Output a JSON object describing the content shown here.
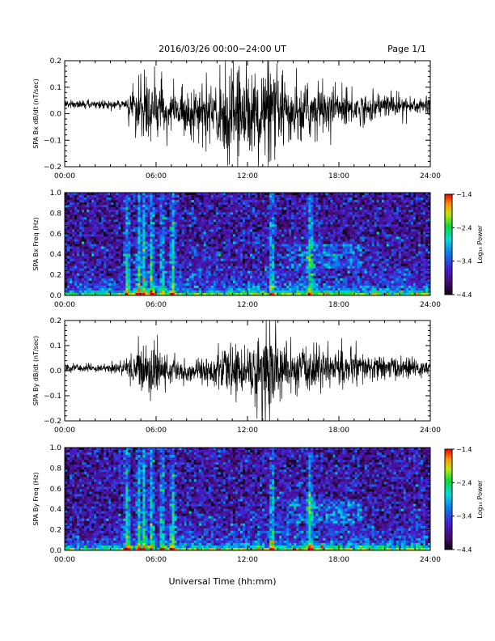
{
  "header": {
    "title": "2016/03/26  00:00−24:00 UT",
    "page": "Page 1/1"
  },
  "footer": {
    "xlabel": "Universal Time (hh:mm)"
  },
  "chart_data": [
    {
      "type": "line",
      "ylabel": "SPA Bx dB/dt (nT/sec)",
      "xlim": [
        0,
        24
      ],
      "ylim": [
        -0.2,
        0.2
      ],
      "xticks": [
        "00:00",
        "06:00",
        "12:00",
        "18:00",
        "24:00"
      ],
      "yticks": [
        "−0.2",
        "−0.1",
        "0.0",
        "0.1",
        "0.2"
      ],
      "envelope": {
        "x": [
          0,
          2,
          4,
          4.2,
          5,
          6,
          7,
          8,
          9,
          10,
          10.5,
          11,
          12,
          13,
          13.5,
          14,
          15,
          16,
          17,
          18,
          19,
          20,
          21,
          22,
          23,
          24
        ],
        "amplitude": [
          0.018,
          0.016,
          0.02,
          0.07,
          0.12,
          0.11,
          0.08,
          0.09,
          0.11,
          0.14,
          0.19,
          0.2,
          0.16,
          0.2,
          0.2,
          0.14,
          0.11,
          0.12,
          0.1,
          0.09,
          0.07,
          0.06,
          0.05,
          0.05,
          0.04,
          0.04
        ],
        "offset": [
          0.035,
          0.035,
          0.035,
          0.03,
          0.02,
          0.01,
          0.01,
          0.01,
          0.0,
          0.0,
          0.0,
          0.0,
          0.0,
          0.0,
          0.0,
          0.0,
          0.0,
          0.01,
          0.02,
          0.02,
          0.02,
          0.02,
          0.03,
          0.03,
          0.03,
          0.03
        ]
      }
    },
    {
      "type": "heatmap",
      "ylabel": "SPA Bx Freq (Hz)",
      "xlim": [
        0,
        24
      ],
      "ylim": [
        0,
        1.0
      ],
      "xticks": [
        "00:00",
        "06:00",
        "12:00",
        "18:00",
        "24:00"
      ],
      "yticks": [
        "0.0",
        "0.2",
        "0.4",
        "0.6",
        "0.8",
        "1.0"
      ],
      "colorbar_label": "Log₁₀ Power",
      "colorbar_ticks": [
        "−1.4",
        "−2.4",
        "−3.4",
        "−4.4"
      ],
      "color_range": [
        -4.4,
        -1.4
      ],
      "vertical_bursts_hours": [
        4.1,
        4.9,
        5.2,
        5.7,
        6.4,
        7.1,
        13.6,
        16.1
      ],
      "patch_region": {
        "x": [
          14.5,
          19.5
        ],
        "y": [
          0.25,
          0.5
        ]
      }
    },
    {
      "type": "line",
      "ylabel": "SPA By dB/dt (nT/sec)",
      "xlim": [
        0,
        24
      ],
      "ylim": [
        -0.2,
        0.2
      ],
      "xticks": [
        "00:00",
        "06:00",
        "12:00",
        "18:00",
        "24:00"
      ],
      "yticks": [
        "−0.2",
        "−0.1",
        "0.0",
        "0.1",
        "0.2"
      ],
      "envelope": {
        "x": [
          0,
          2,
          4,
          4.2,
          5,
          6,
          7,
          8,
          9,
          10,
          11,
          12,
          12.5,
          13,
          13.5,
          14,
          15,
          16,
          17,
          18,
          19,
          20,
          21,
          22,
          23,
          24
        ],
        "amplitude": [
          0.02,
          0.018,
          0.025,
          0.07,
          0.1,
          0.1,
          0.05,
          0.05,
          0.06,
          0.08,
          0.1,
          0.1,
          0.14,
          0.2,
          0.2,
          0.14,
          0.1,
          0.1,
          0.09,
          0.08,
          0.07,
          0.06,
          0.05,
          0.05,
          0.04,
          0.04
        ],
        "offset": [
          0.01,
          0.01,
          0.01,
          0.01,
          0.01,
          0.0,
          0.0,
          0.0,
          0.0,
          0.0,
          0.0,
          0.0,
          0.0,
          0.0,
          0.0,
          0.0,
          0.0,
          0.01,
          0.01,
          0.01,
          0.01,
          0.01,
          0.01,
          0.01,
          0.01,
          0.01
        ]
      }
    },
    {
      "type": "heatmap",
      "ylabel": "SPA By Freq (Hz)",
      "xlim": [
        0,
        24
      ],
      "ylim": [
        0,
        1.0
      ],
      "xticks": [
        "00:00",
        "06:00",
        "12:00",
        "18:00",
        "24:00"
      ],
      "yticks": [
        "0.0",
        "0.2",
        "0.4",
        "0.6",
        "0.8",
        "1.0"
      ],
      "colorbar_label": "Log₁₀ Power",
      "colorbar_ticks": [
        "−1.4",
        "−2.4",
        "−3.4",
        "−4.4"
      ],
      "color_range": [
        -4.4,
        -1.4
      ],
      "vertical_bursts_hours": [
        4.1,
        4.9,
        5.2,
        5.7,
        6.4,
        7.1,
        13.6,
        16.1
      ],
      "patch_region": {
        "x": [
          14.5,
          19.5
        ],
        "y": [
          0.25,
          0.5
        ]
      }
    }
  ]
}
